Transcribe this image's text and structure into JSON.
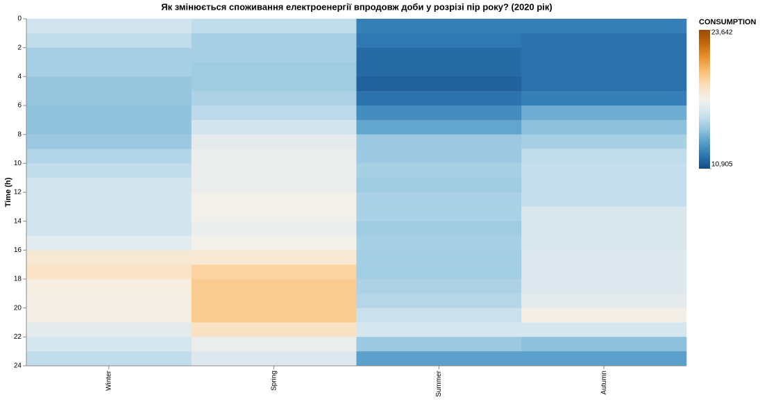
{
  "chart_data": {
    "type": "heatmap",
    "title": "Як змінюється споживання електроенергії впродовж доби у розрізі пір року? (2020 рік)",
    "y_label": "Time (h)",
    "categories": [
      "Winter",
      "Spring",
      "Summer",
      "Autumn"
    ],
    "y": [
      0,
      1,
      2,
      3,
      4,
      5,
      6,
      7,
      8,
      9,
      10,
      11,
      12,
      13,
      14,
      15,
      16,
      17,
      18,
      19,
      20,
      21,
      22,
      23
    ],
    "ylim": [
      0,
      24
    ],
    "yticks": [
      0,
      2,
      4,
      6,
      8,
      10,
      12,
      14,
      16,
      18,
      20,
      22,
      24
    ],
    "values": [
      [
        16000,
        15600,
        15000,
        15000,
        14600,
        14600,
        14500,
        14500,
        14700,
        15200,
        15600,
        16000,
        16000,
        16000,
        16000,
        16650,
        17900,
        18200,
        17550,
        17400,
        17400,
        16750,
        16100,
        15600
      ],
      [
        15600,
        15000,
        15000,
        14800,
        14800,
        15100,
        15500,
        16000,
        16750,
        16950,
        16950,
        16950,
        17300,
        17300,
        17000,
        17300,
        17900,
        19000,
        19300,
        19300,
        19300,
        18300,
        16950,
        16400
      ],
      [
        12400,
        12180,
        11800,
        11800,
        11550,
        12050,
        12800,
        13580,
        14700,
        14700,
        15000,
        14800,
        15050,
        15050,
        14800,
        15000,
        14900,
        14900,
        15100,
        15300,
        15800,
        16100,
        14700,
        13400
      ],
      [
        12400,
        12000,
        12000,
        12000,
        12000,
        12400,
        13800,
        14400,
        15000,
        15600,
        15700,
        15700,
        15700,
        16300,
        16300,
        16300,
        16400,
        16400,
        16400,
        16750,
        17400,
        16100,
        14400,
        13400
      ]
    ],
    "legend": {
      "title": "CONSUMPTION",
      "ticks": [
        {
          "value": 10905,
          "label": "10,905"
        },
        {
          "value": 23642,
          "label": "23,642"
        }
      ]
    },
    "colors": [
      "#134b85",
      "#2f78b3",
      "#5da2cb",
      "#9dcae1",
      "#d2e5ef",
      "#f2f0eb",
      "#fce0ba",
      "#fbbf74",
      "#e8932f",
      "#c5690d",
      "#994a07"
    ]
  }
}
